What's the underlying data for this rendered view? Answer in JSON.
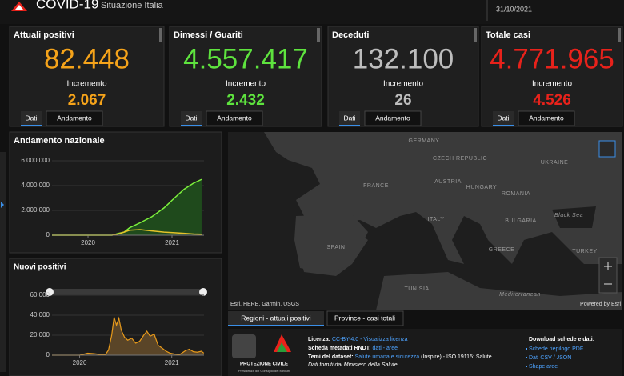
{
  "header": {
    "title": "COVID-19",
    "subtitle": "Situazione Italia",
    "date": "31/10/2021"
  },
  "cards": [
    {
      "title": "Attuali positivi",
      "value": "82.448",
      "increment_label": "Incremento",
      "increment": "2.067",
      "color": "#f5a31a",
      "tabs": [
        "Dati",
        "Andamento"
      ]
    },
    {
      "title": "Dimessi / Guariti",
      "value": "4.557.417",
      "increment_label": "Incremento",
      "increment": "2.432",
      "color": "#5ee33e",
      "tabs": [
        "Dati",
        "Andamento"
      ]
    },
    {
      "title": "Deceduti",
      "value": "132.100",
      "increment_label": "Incremento",
      "increment": "26",
      "color": "#bdbdbd",
      "tabs": [
        "Dati",
        "Andamento"
      ]
    },
    {
      "title": "Totale casi",
      "value": "4.771.965",
      "increment_label": "Incremento",
      "increment": "4.526",
      "color": "#e8221b",
      "tabs": [
        "Dati",
        "Andamento"
      ]
    }
  ],
  "chart_data": [
    {
      "type": "line",
      "title": "Andamento nazionale",
      "x": [
        2019.571,
        2020.286,
        2020.362,
        2020.429,
        2020.495,
        2020.619,
        2020.762,
        2020.905,
        2021.029,
        2021.143,
        2021.257,
        2021.352
      ],
      "series": [
        {
          "color": "#7cf03c",
          "fill": "#1f4a1c",
          "values": [
            0,
            0,
            150000,
            250000,
            600000,
            1000000,
            1500000,
            2200000,
            3000000,
            3700000,
            4200000,
            4500000
          ]
        },
        {
          "color": "#e6c229",
          "values": [
            0,
            0,
            100000,
            250000,
            400000,
            450000,
            350000,
            250000,
            200000,
            150000,
            100000,
            80000
          ]
        }
      ],
      "xlim": [
        2019.571,
        2021.381
      ],
      "xticks": [
        2020,
        2021
      ],
      "ylim": [
        0,
        6000000
      ],
      "yticks": [
        0,
        {
          "value": 2000000,
          "label": "2.000.000"
        },
        {
          "value": 4000000,
          "label": "4.000.000"
        },
        {
          "value": 6000000,
          "label": "6.000.000"
        }
      ],
      "grid": true
    },
    {
      "type": "area",
      "title": "Nuovi positivi",
      "color": "#e89a1a",
      "fill": "#5a4528",
      "x": [
        2019.7,
        2020.0,
        2020.087,
        2020.157,
        2020.217,
        2020.278,
        2020.313,
        2020.348,
        2020.374,
        2020.4,
        2020.426,
        2020.452,
        2020.487,
        2020.522,
        2020.565,
        2020.609,
        2020.652,
        2020.696,
        2020.73,
        2020.765,
        2020.809,
        2020.852,
        2020.896,
        2020.939,
        2020.983,
        2021.026,
        2021.087,
        2021.148,
        2021.191,
        2021.235,
        2021.278,
        2021.322,
        2021.348
      ],
      "values": [
        0,
        0,
        2000,
        1500,
        800,
        500,
        5000,
        20000,
        38000,
        30000,
        37000,
        25000,
        18000,
        15000,
        17000,
        12000,
        14000,
        20000,
        24000,
        19000,
        21000,
        10000,
        7000,
        4000,
        2000,
        1200,
        700,
        4500,
        6000,
        3500,
        3000,
        4000,
        2067
      ],
      "xlim": [
        2019.7,
        2021.35
      ],
      "xticks": [
        2020,
        2021
      ],
      "ylim": [
        0,
        65000
      ],
      "yticks": [
        0,
        {
          "value": 20000,
          "label": "20.000"
        },
        {
          "value": 40000,
          "label": "40.000"
        },
        {
          "value": 60000,
          "label": "60.000"
        }
      ],
      "grid": true
    }
  ],
  "map": {
    "labels": [
      "GERMANY",
      "CZECH REPUBLIC",
      "UKRAINE",
      "FRANCE",
      "AUSTRIA",
      "HUNGARY",
      "ROMANIA",
      "ITALY",
      "BULGARIA",
      "Black Sea",
      "SPAIN",
      "GREECE",
      "TURKEY",
      "TUNISIA",
      "Mediterranean"
    ],
    "attribution": "Esri, HERE, Garmin, USGS",
    "powered": "Powered by Esri",
    "tabs": [
      "Regioni - attuali positivi",
      "Province - casi totali"
    ]
  },
  "footer": {
    "logo_title": "PROTEZIONE CIVILE",
    "logo_subtitle": "Presidenza del Consiglio dei Ministri",
    "lines": [
      {
        "label": "Licenza:",
        "link": "CC-BY-4.0 - Visualizza licenza"
      },
      {
        "label": "Scheda metadati RNDT:",
        "link": "dati - aree"
      },
      {
        "label": "Temi del dataset:",
        "link": "Salute umana e sicurezza",
        "rest": "(Inspire) - ISO 19115: Salute"
      }
    ],
    "note": "Dati forniti dal Ministero della Salute",
    "download_title": "Download schede e dati:",
    "downloads": [
      "Schede riepilogo PDF",
      "Dati CSV / JSON",
      "Shape aree"
    ]
  }
}
